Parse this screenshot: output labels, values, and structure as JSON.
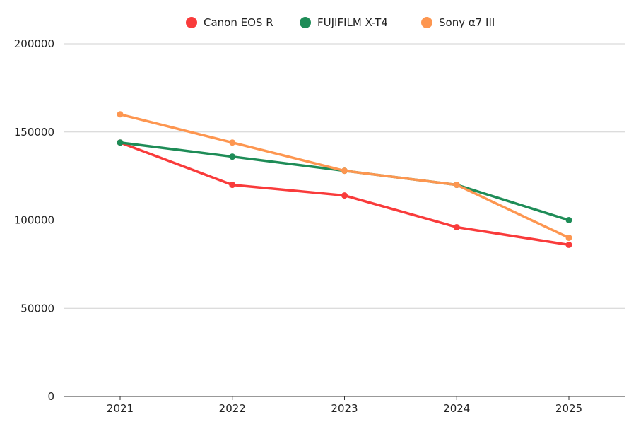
{
  "chart_data": {
    "type": "line",
    "title": "",
    "xlabel": "",
    "ylabel": "",
    "categories": [
      "2021",
      "2022",
      "2023",
      "2024",
      "2025"
    ],
    "ylim": [
      0,
      200000
    ],
    "yticks": [
      0,
      50000,
      100000,
      150000,
      200000
    ],
    "grid": true,
    "legend_position": "top-center",
    "series": [
      {
        "name": "Canon EOS R",
        "color": "#f93b3b",
        "values": [
          144000,
          120000,
          114000,
          96000,
          86000
        ]
      },
      {
        "name": "FUJIFILM X-T4",
        "color": "#1e8c57",
        "values": [
          144000,
          136000,
          128000,
          120000,
          100000
        ]
      },
      {
        "name": "Sony α7 III",
        "color": "#fd9650",
        "values": [
          160000,
          144000,
          128000,
          120000,
          90000
        ]
      }
    ]
  }
}
